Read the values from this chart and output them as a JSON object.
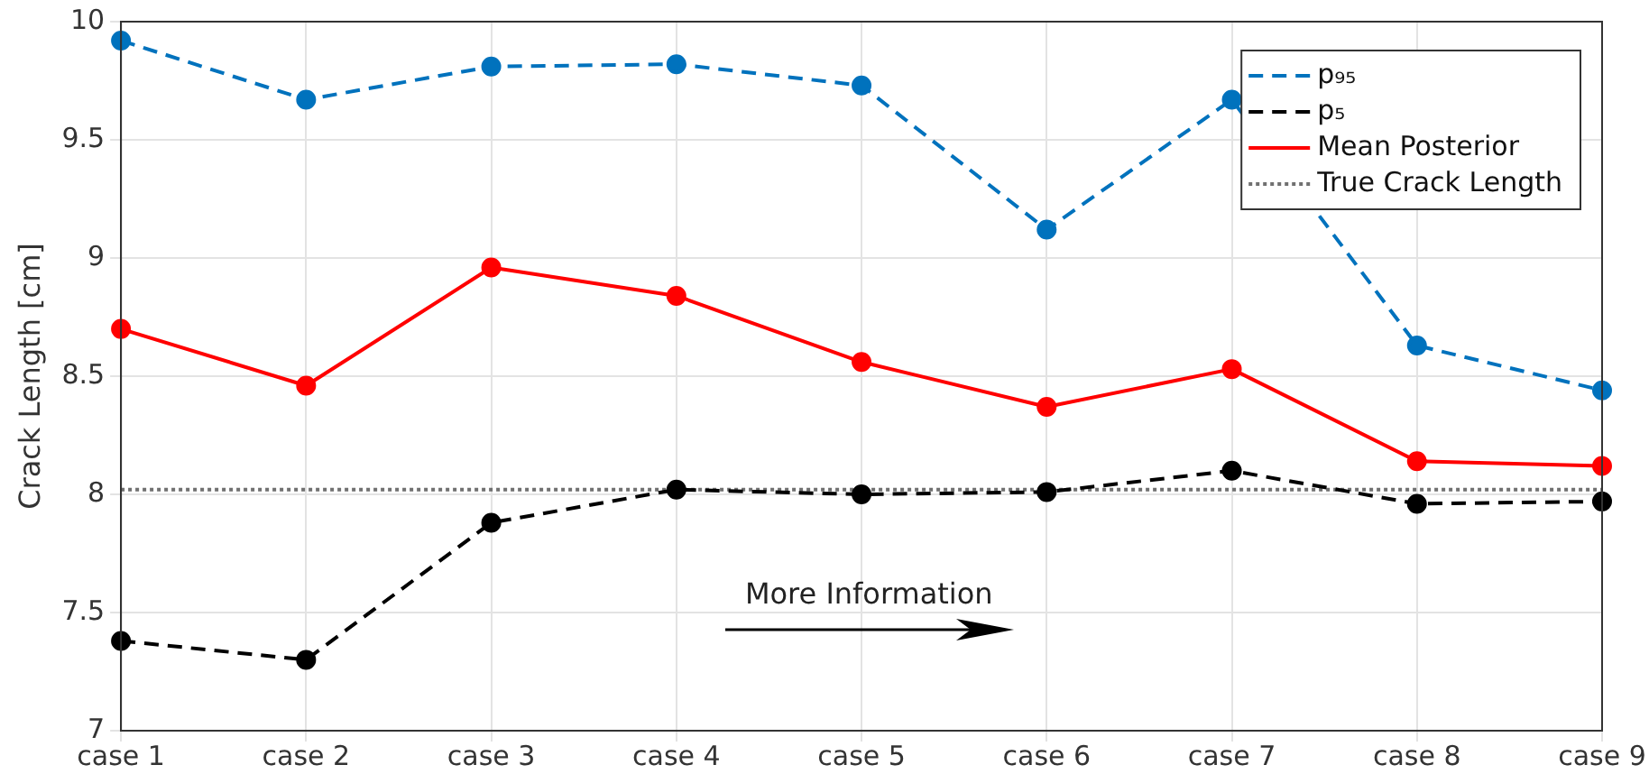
{
  "chart_data": {
    "type": "line",
    "categories": [
      "case 1",
      "case 2",
      "case 3",
      "case 4",
      "case 5",
      "case 6",
      "case 7",
      "case 8",
      "case 9"
    ],
    "ylabel": "Crack Length [cm]",
    "ylim": [
      7,
      10
    ],
    "yticks": [
      7,
      7.5,
      8,
      8.5,
      9,
      9.5,
      10
    ],
    "grid": true,
    "legend": "top right",
    "annotations": [
      "More Information"
    ],
    "series": [
      {
        "name": "p₉₅",
        "color": "#0072bd",
        "line_style": "dashed",
        "marker": "circle",
        "values": [
          9.92,
          9.67,
          9.81,
          9.82,
          9.73,
          9.12,
          9.67,
          8.63,
          8.44
        ]
      },
      {
        "name": "p₅",
        "color": "#000000",
        "line_style": "dashed",
        "marker": "circle",
        "values": [
          7.38,
          7.3,
          7.88,
          8.02,
          8.0,
          8.01,
          8.1,
          7.96,
          7.97
        ]
      },
      {
        "name": "Mean Posterior",
        "color": "#ff0000",
        "line_style": "solid",
        "marker": "circle",
        "values": [
          8.7,
          8.46,
          8.96,
          8.84,
          8.56,
          8.37,
          8.53,
          8.14,
          8.12
        ]
      },
      {
        "name": "True Crack Length",
        "color": "#707070",
        "line_style": "dotted",
        "marker": "none",
        "values": [
          8.02,
          8.02,
          8.02,
          8.02,
          8.02,
          8.02,
          8.02,
          8.02,
          8.02
        ]
      }
    ]
  }
}
